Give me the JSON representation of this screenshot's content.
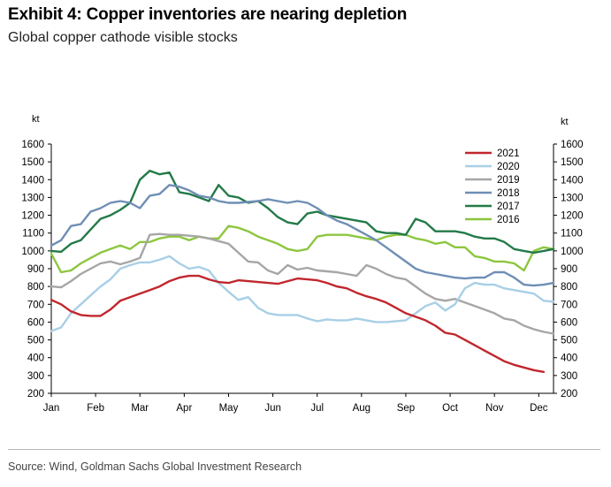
{
  "header": {
    "title": "Exhibit 4: Copper inventories are nearing depletion",
    "subtitle": "Global copper cathode visible stocks"
  },
  "footer": {
    "source": "Source: Wind, Goldman Sachs Global Investment Research"
  },
  "chart_data": {
    "type": "line",
    "title": "",
    "xlabel": "",
    "ylabel": "kt",
    "ylabel_right": "kt",
    "ylim": [
      200,
      1600
    ],
    "yticks": [
      200,
      300,
      400,
      500,
      600,
      700,
      800,
      900,
      1000,
      1100,
      1200,
      1300,
      1400,
      1500,
      1600
    ],
    "xlim": [
      0,
      51
    ],
    "xtick_labels": [
      "Jan",
      "Feb",
      "Mar",
      "Apr",
      "May",
      "Jun",
      "Jul",
      "Aug",
      "Sep",
      "Oct",
      "Nov",
      "Dec"
    ],
    "xtick_positions": [
      0,
      4.5,
      9,
      13.5,
      18,
      22.5,
      27,
      31.5,
      36,
      40.5,
      45,
      49.5
    ],
    "grid": false,
    "legend_position": "top-right",
    "series": [
      {
        "name": "2021",
        "color": "#c0272d",
        "x": [
          0,
          1,
          2,
          3,
          4,
          5,
          6,
          7,
          8,
          9,
          10,
          11,
          12,
          13,
          14,
          15,
          16,
          17,
          18,
          19,
          20,
          21,
          22,
          23,
          24,
          25,
          26,
          27,
          28,
          29,
          30,
          31,
          32,
          33,
          34,
          35,
          36,
          37,
          38,
          39,
          40,
          41,
          42,
          43,
          44,
          45,
          46,
          47,
          48,
          49,
          50
        ],
        "values": [
          725,
          700,
          660,
          640,
          635,
          635,
          670,
          720,
          740,
          760,
          780,
          800,
          830,
          850,
          860,
          860,
          840,
          825,
          820,
          835,
          830,
          825,
          820,
          815,
          830,
          845,
          840,
          835,
          820,
          800,
          790,
          765,
          745,
          730,
          710,
          680,
          650,
          630,
          610,
          580,
          540,
          530,
          500,
          470,
          440,
          410,
          380,
          360,
          345,
          330,
          320
        ]
      },
      {
        "name": "2020",
        "color": "#a8cfe6",
        "x": [
          0,
          1,
          2,
          3,
          4,
          5,
          6,
          7,
          8,
          9,
          10,
          11,
          12,
          13,
          14,
          15,
          16,
          17,
          18,
          19,
          20,
          21,
          22,
          23,
          24,
          25,
          26,
          27,
          28,
          29,
          30,
          31,
          32,
          33,
          34,
          35,
          36,
          37,
          38,
          39,
          40,
          41,
          42,
          43,
          44,
          45,
          46,
          47,
          48,
          49,
          50,
          51
        ],
        "values": [
          550,
          570,
          650,
          700,
          750,
          800,
          840,
          900,
          920,
          935,
          935,
          950,
          970,
          930,
          900,
          910,
          890,
          820,
          770,
          725,
          740,
          680,
          650,
          640,
          640,
          640,
          620,
          605,
          615,
          610,
          610,
          620,
          610,
          600,
          600,
          605,
          610,
          650,
          690,
          710,
          665,
          700,
          790,
          820,
          810,
          810,
          790,
          780,
          770,
          760,
          720,
          715
        ]
      },
      {
        "name": "2019",
        "color": "#a6a6a6",
        "x": [
          0,
          1,
          2,
          3,
          4,
          5,
          6,
          7,
          8,
          9,
          10,
          11,
          12,
          13,
          14,
          15,
          16,
          17,
          18,
          19,
          20,
          21,
          22,
          23,
          24,
          25,
          26,
          27,
          28,
          29,
          30,
          31,
          32,
          33,
          34,
          35,
          36,
          37,
          38,
          39,
          40,
          41,
          42,
          43,
          44,
          45,
          46,
          47,
          48,
          49,
          50,
          51
        ],
        "values": [
          800,
          795,
          830,
          870,
          900,
          930,
          940,
          925,
          940,
          960,
          1090,
          1095,
          1090,
          1090,
          1085,
          1080,
          1070,
          1055,
          1040,
          990,
          940,
          935,
          890,
          870,
          920,
          895,
          905,
          890,
          885,
          880,
          870,
          860,
          920,
          900,
          870,
          850,
          840,
          800,
          760,
          730,
          720,
          730,
          710,
          690,
          670,
          650,
          620,
          610,
          580,
          560,
          545,
          535
        ]
      },
      {
        "name": "2018",
        "color": "#6f8eb5",
        "x": [
          0,
          1,
          2,
          3,
          4,
          5,
          6,
          7,
          8,
          9,
          10,
          11,
          12,
          13,
          14,
          15,
          16,
          17,
          18,
          19,
          20,
          21,
          22,
          23,
          24,
          25,
          26,
          27,
          28,
          29,
          30,
          31,
          32,
          33,
          34,
          35,
          36,
          37,
          38,
          39,
          40,
          41,
          42,
          43,
          44,
          45,
          46,
          47,
          48,
          49,
          50,
          51
        ],
        "values": [
          1030,
          1060,
          1140,
          1150,
          1220,
          1240,
          1270,
          1280,
          1270,
          1240,
          1310,
          1320,
          1370,
          1360,
          1340,
          1310,
          1300,
          1280,
          1270,
          1270,
          1275,
          1280,
          1290,
          1280,
          1270,
          1280,
          1270,
          1240,
          1200,
          1170,
          1150,
          1120,
          1090,
          1060,
          1020,
          980,
          940,
          900,
          880,
          870,
          860,
          850,
          845,
          850,
          850,
          880,
          880,
          850,
          810,
          805,
          810,
          820
        ]
      },
      {
        "name": "2017",
        "color": "#237a48",
        "x": [
          0,
          1,
          2,
          3,
          4,
          5,
          6,
          7,
          8,
          9,
          10,
          11,
          12,
          13,
          14,
          15,
          16,
          17,
          18,
          19,
          20,
          21,
          22,
          23,
          24,
          25,
          26,
          27,
          28,
          29,
          30,
          31,
          32,
          33,
          34,
          35,
          36,
          37,
          38,
          39,
          40,
          41,
          42,
          43,
          44,
          45,
          46,
          47,
          48,
          49,
          50,
          51
        ],
        "values": [
          1000,
          995,
          1040,
          1060,
          1120,
          1180,
          1200,
          1230,
          1270,
          1400,
          1450,
          1430,
          1440,
          1330,
          1320,
          1300,
          1280,
          1370,
          1310,
          1300,
          1270,
          1280,
          1240,
          1190,
          1160,
          1150,
          1210,
          1220,
          1200,
          1190,
          1180,
          1170,
          1160,
          1110,
          1100,
          1100,
          1090,
          1180,
          1160,
          1110,
          1110,
          1110,
          1100,
          1080,
          1070,
          1070,
          1050,
          1010,
          1000,
          990,
          1000,
          1010
        ]
      },
      {
        "name": "2016",
        "color": "#8dc63f",
        "x": [
          0,
          1,
          2,
          3,
          4,
          5,
          6,
          7,
          8,
          9,
          10,
          11,
          12,
          13,
          14,
          15,
          16,
          17,
          18,
          19,
          20,
          21,
          22,
          23,
          24,
          25,
          26,
          27,
          28,
          29,
          30,
          31,
          32,
          33,
          34,
          35,
          36,
          37,
          38,
          39,
          40,
          41,
          42,
          43,
          44,
          45,
          46,
          47,
          48,
          49,
          50,
          51
        ],
        "values": [
          985,
          880,
          890,
          930,
          960,
          990,
          1010,
          1030,
          1010,
          1050,
          1050,
          1070,
          1080,
          1080,
          1060,
          1080,
          1070,
          1070,
          1140,
          1130,
          1110,
          1080,
          1060,
          1040,
          1010,
          1000,
          1010,
          1080,
          1090,
          1090,
          1090,
          1080,
          1070,
          1060,
          1080,
          1090,
          1090,
          1070,
          1060,
          1040,
          1050,
          1020,
          1020,
          970,
          960,
          940,
          940,
          930,
          890,
          1000,
          1020,
          1010
        ]
      }
    ]
  }
}
